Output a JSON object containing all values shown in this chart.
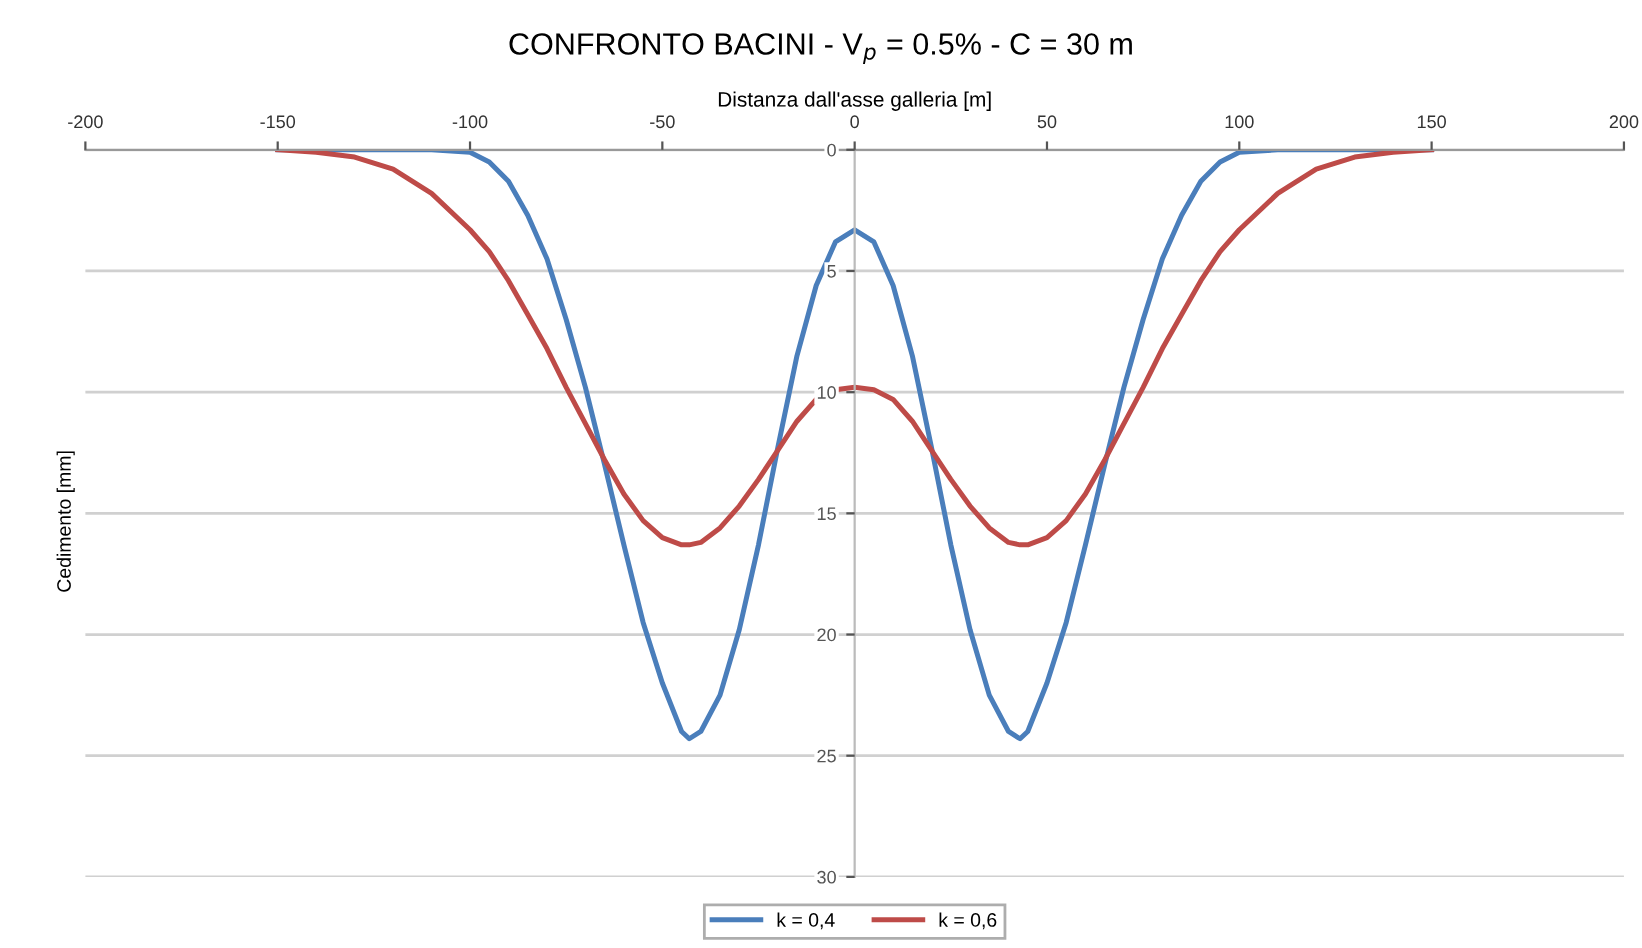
{
  "chart_data": {
    "type": "line",
    "title": "CONFRONTO BACINI - V$_{p}$ = 0.5% - C = 30 m",
    "xlabel": "Distanza dall'asse galleria [m]",
    "ylabel": "Cedimento [mm]",
    "x": [
      -150,
      -140,
      -130,
      -120,
      -110,
      -100,
      -95,
      -90,
      -85,
      -80,
      -75,
      -70,
      -65,
      -60,
      -55,
      -50,
      -45,
      -43,
      -40,
      -35,
      -30,
      -25,
      -20,
      -15,
      -10,
      -5,
      0,
      5,
      10,
      15,
      20,
      25,
      30,
      35,
      40,
      43,
      45,
      50,
      55,
      60,
      65,
      70,
      75,
      80,
      85,
      90,
      95,
      100,
      110,
      120,
      130,
      140,
      150
    ],
    "series": [
      {
        "name": "k = 0,4",
        "color": "#4a7ebb",
        "values": [
          0,
          0,
          0,
          0,
          0,
          0.1,
          0.5,
          1.3,
          2.7,
          4.5,
          7.0,
          9.8,
          13,
          16.3,
          19.5,
          22.0,
          24.0,
          24.3,
          24.0,
          22.5,
          19.8,
          16.3,
          12.3,
          8.5,
          5.6,
          3.8,
          3.3,
          3.8,
          5.6,
          8.5,
          12.3,
          16.3,
          19.8,
          22.5,
          24.0,
          24.3,
          24.0,
          22.0,
          19.5,
          16.3,
          13,
          9.8,
          7.0,
          4.5,
          2.7,
          1.3,
          0.5,
          0.1,
          0,
          0,
          0,
          0,
          0
        ]
      },
      {
        "name": "k = 0,6",
        "color": "#be4b48",
        "values": [
          0,
          0.1,
          0.3,
          0.8,
          1.8,
          3.3,
          4.2,
          5.4,
          6.8,
          8.2,
          9.8,
          11.3,
          12.8,
          14.2,
          15.3,
          16.0,
          16.3,
          16.3,
          16.2,
          15.6,
          14.7,
          13.6,
          12.4,
          11.2,
          10.3,
          9.9,
          9.8,
          9.9,
          10.3,
          11.2,
          12.4,
          13.6,
          14.7,
          15.6,
          16.2,
          16.3,
          16.3,
          16.0,
          15.3,
          14.2,
          12.8,
          11.3,
          9.8,
          8.2,
          6.8,
          5.4,
          4.2,
          3.3,
          1.8,
          0.8,
          0.3,
          0.1,
          0
        ]
      }
    ],
    "xlim": [
      -200,
      200
    ],
    "xticks": [
      -200,
      -150,
      -100,
      -50,
      0,
      50,
      100,
      150,
      200
    ],
    "ylim": [
      30,
      0
    ],
    "yticks": [
      0,
      5,
      10,
      15,
      20,
      25,
      30
    ],
    "grid": "y",
    "legend": "bottom",
    "marker": "none",
    "line_style": "solid"
  }
}
